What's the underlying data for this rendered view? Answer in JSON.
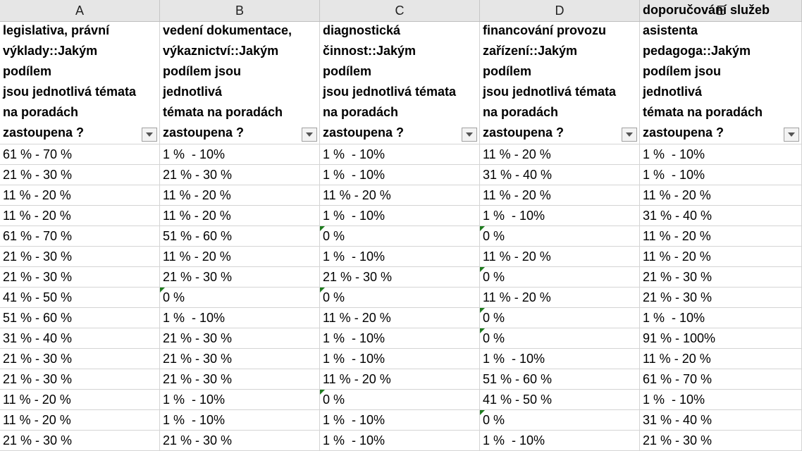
{
  "columns": [
    "A",
    "B",
    "C",
    "D",
    "E"
  ],
  "headers": [
    [
      "legislativa, právní",
      "výklady::Jakým podílem",
      "jsou jednotlivá témata",
      "na poradách",
      "zastoupena ?"
    ],
    [
      "vedení dokumentace,",
      "výkaznictví::Jakým",
      "podílem jsou jednotlivá",
      "témata na poradách",
      "zastoupena ?"
    ],
    [
      "diagnostická",
      "činnost::Jakým podílem",
      "jsou jednotlivá témata",
      "na poradách",
      "zastoupena ?"
    ],
    [
      "financování provozu",
      "zařízení::Jakým podílem",
      "jsou jednotlivá témata",
      "na poradách",
      "zastoupena ?"
    ],
    [
      "doporučování služeb",
      "asistenta",
      "pedagoga::Jakým",
      "podílem jsou jednotlivá",
      "témata na poradách",
      "zastoupena ?"
    ]
  ],
  "rows": [
    [
      "61 % - 70 %",
      "1 %  - 10%",
      "1 %  - 10%",
      "11 % - 20 %",
      "1 %  - 10%"
    ],
    [
      "21 % - 30 %",
      "21 % - 30 %",
      "1 %  - 10%",
      "31 % - 40 %",
      "1 %  - 10%"
    ],
    [
      "11 % - 20 %",
      "11 % - 20 %",
      "11 % - 20 %",
      "11 % - 20 %",
      "11 % - 20 %"
    ],
    [
      "11 % - 20 %",
      "11 % - 20 %",
      "1 %  - 10%",
      "1 %  - 10%",
      "31 % - 40 %"
    ],
    [
      "61 % - 70 %",
      "51 % - 60 %",
      "0 %",
      "0 %",
      "11 % - 20 %"
    ],
    [
      "21 % - 30 %",
      "11 % - 20 %",
      "1 %  - 10%",
      "11 % - 20 %",
      "11 % - 20 %"
    ],
    [
      "21 % - 30 %",
      "21 % - 30 %",
      "21 % - 30 %",
      "0 %",
      "21 % - 30 %"
    ],
    [
      "41 % - 50 %",
      "0 %",
      "0 %",
      "11 % - 20 %",
      "21 % - 30 %"
    ],
    [
      "51 % - 60 %",
      "1 %  - 10%",
      "11 % - 20 %",
      "0 %",
      "1 %  - 10%"
    ],
    [
      "31 % - 40 %",
      "21 % - 30 %",
      "1 %  - 10%",
      "0 %",
      "91 % - 100%"
    ],
    [
      "21 % - 30 %",
      "21 % - 30 %",
      "1 %  - 10%",
      "1 %  - 10%",
      "11 % - 20 %"
    ],
    [
      "21 % - 30 %",
      "21 % - 30 %",
      "11 % - 20 %",
      "51 % - 60 %",
      "61 % - 70 %"
    ],
    [
      "11 % - 20 %",
      "1 %  - 10%",
      "0 %",
      "41 % - 50 %",
      "1 %  - 10%"
    ],
    [
      "11 % - 20 %",
      "1 %  - 10%",
      "1 %  - 10%",
      "0 %",
      "31 % - 40 %"
    ],
    [
      "21 % - 30 %",
      "21 % - 30 %",
      "1 %  - 10%",
      "1 %  - 10%",
      "21 % - 30 %"
    ]
  ],
  "colors": {
    "error_flag": "#1e7b1e",
    "gridline": "#d4d4d4",
    "column_header_bg": "#e6e6e6"
  },
  "icons": {
    "filter": "dropdown-arrow-icon"
  }
}
